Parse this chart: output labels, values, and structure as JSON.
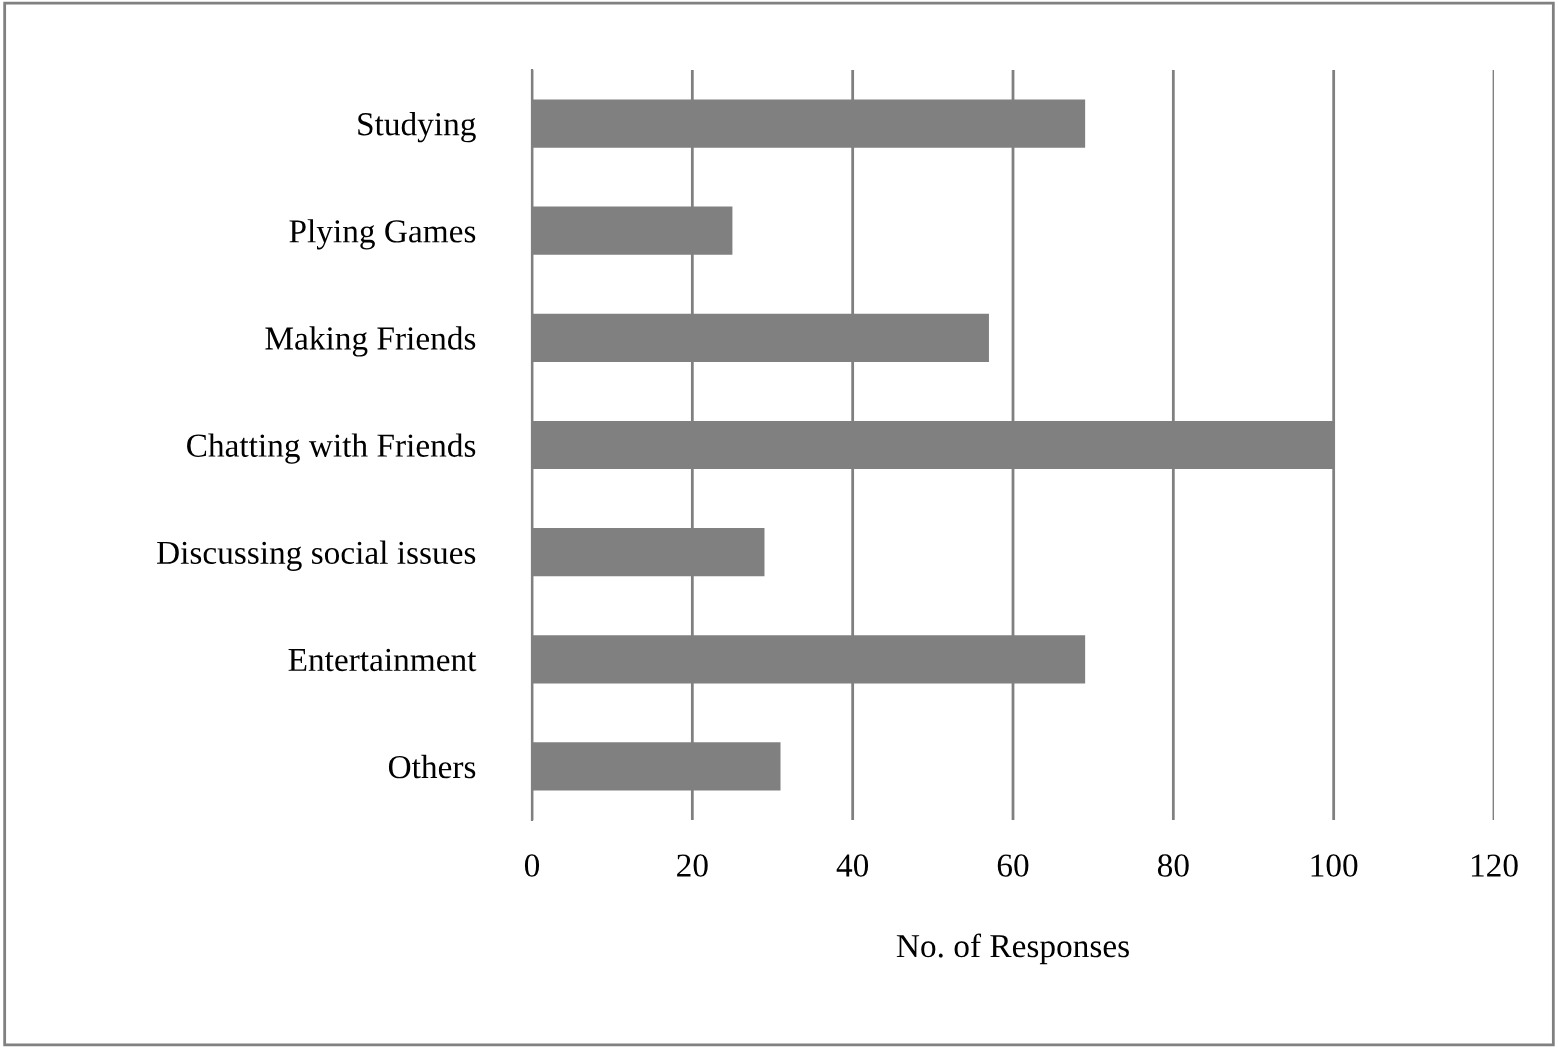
{
  "chart_data": {
    "type": "bar",
    "orientation": "horizontal",
    "xlabel": "No. of Responses",
    "categories": [
      "Studying",
      "Plying Games",
      "Making Friends",
      "Chatting with Friends",
      "Discussing social issues",
      "Entertainment",
      "Others"
    ],
    "values": [
      69,
      25,
      57,
      100,
      29,
      69,
      31
    ],
    "color": "#808080",
    "xlim": [
      0,
      120
    ],
    "xticks": [
      0,
      20,
      40,
      60,
      80,
      100,
      120
    ],
    "grid": "x",
    "legend": false
  }
}
